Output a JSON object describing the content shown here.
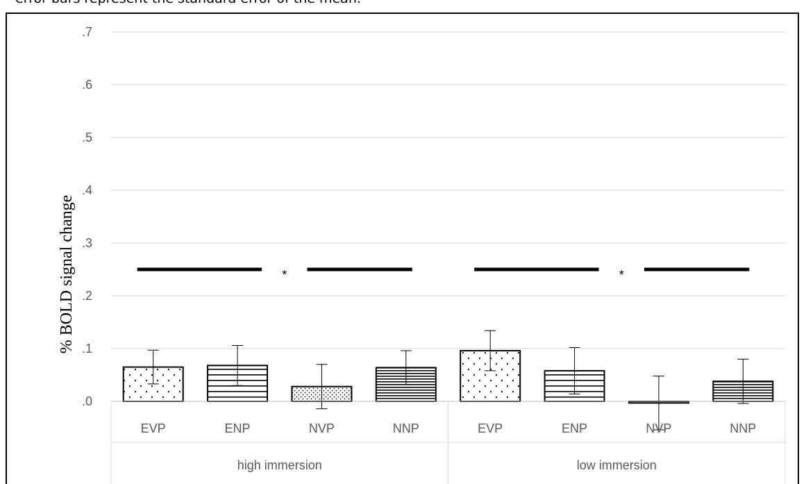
{
  "caption": "error bars represent the standard error of the mean.",
  "chart_data": {
    "type": "bar",
    "ylabel": "% BOLD signal change",
    "ylim": [
      0,
      0.7
    ],
    "yticks": [
      ".0",
      ".1",
      ".2",
      ".3",
      ".4",
      ".5",
      ".6",
      ".7"
    ],
    "grid": true,
    "groups": [
      {
        "name": "high immersion",
        "categories": [
          "EVP",
          "ENP",
          "NVP",
          "NNP"
        ],
        "values": [
          0.065,
          0.068,
          0.028,
          0.064
        ],
        "errors": [
          0.032,
          0.038,
          0.042,
          0.032
        ],
        "significance_label": "*"
      },
      {
        "name": "low immersion",
        "categories": [
          "EVP",
          "ENP",
          "NVP",
          "NNP"
        ],
        "values": [
          0.096,
          0.058,
          -0.003,
          0.038
        ],
        "errors": [
          0.038,
          0.044,
          0.051,
          0.042
        ],
        "significance_label": "*"
      }
    ],
    "significance_level": 0.25,
    "patterns": [
      "dots",
      "horizontal-lines",
      "dense-dots",
      "dense-horizontal-lines"
    ]
  }
}
